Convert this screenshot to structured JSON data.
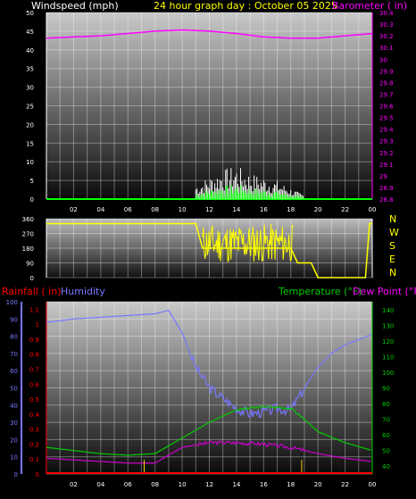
{
  "header": {
    "windspeed_label": "Windspeed (mph)",
    "title": "24 hour graph day : October 05 2025",
    "barometer_label": "Barometer ( in)"
  },
  "legend": {
    "rainfall_label": "Rainfall ( in)",
    "humidity_label": "Humidity",
    "temperature_label": "Temperature (°F)",
    "dewpoint_label": "Dew Point (°F)"
  },
  "direction_labels": [
    "N",
    "W",
    "S",
    "E",
    "N"
  ],
  "colors": {
    "wind": "#ffffff",
    "gust": "#00ff00",
    "barometer": "#ff00ff",
    "direction": "#ffff00",
    "humidity": "#7777ff",
    "temperature": "#00cc00",
    "dewpoint": "#cc00cc",
    "rain": "#ff0000",
    "title": "#ffff00"
  },
  "chart_data": [
    {
      "type": "line",
      "name": "wind-barometer",
      "x_ticks": [
        "02",
        "04",
        "06",
        "08",
        "10",
        "12",
        "14",
        "16",
        "18",
        "20",
        "22",
        "00"
      ],
      "y_left_ticks": [
        "0",
        "5",
        "10",
        "15",
        "20",
        "25",
        "30",
        "35",
        "40",
        "45",
        "50"
      ],
      "y_left_lim": [
        0,
        50
      ],
      "y_right_ticks": [
        "28.8",
        "28.9",
        "29",
        "29.1",
        "29.2",
        "29.3",
        "29.4",
        "29.5",
        "29.6",
        "29.7",
        "29.8",
        "29.9",
        "30",
        "30.1",
        "30.2",
        "30.3",
        "30.4"
      ],
      "y_right_lim": [
        28.8,
        30.4
      ],
      "barometer": {
        "x": [
          0,
          2,
          4,
          6,
          8,
          10,
          12,
          14,
          16,
          18,
          20,
          22,
          24
        ],
        "y": [
          30.18,
          30.19,
          30.2,
          30.22,
          30.24,
          30.25,
          30.24,
          30.22,
          30.19,
          30.18,
          30.18,
          30.2,
          30.22
        ]
      },
      "wind_max": {
        "x": [
          11,
          12,
          13,
          14,
          15,
          16,
          17,
          18,
          19
        ],
        "y": [
          4,
          6,
          8,
          9,
          7,
          6,
          5,
          3,
          1
        ]
      }
    },
    {
      "type": "line",
      "name": "wind-direction",
      "y_ticks": [
        "0",
        "90",
        "180",
        "270",
        "360"
      ],
      "ylim": [
        0,
        360
      ],
      "x": [
        0,
        11,
        11.5,
        18,
        18.5,
        19.5,
        20,
        23.5,
        23.8,
        24
      ],
      "y": [
        330,
        330,
        180,
        180,
        90,
        90,
        0,
        0,
        330,
        330
      ]
    },
    {
      "type": "line",
      "name": "temp-humidity-rain",
      "y_humidity_ticks": [
        "0",
        "10",
        "20",
        "30",
        "40",
        "50",
        "60",
        "70",
        "80",
        "90",
        "100"
      ],
      "y_rain_ticks": [
        "0",
        "0.1",
        "0.2",
        "0.3",
        "0.4",
        "0.5",
        "0.6",
        "0.7",
        "0.8",
        "0.9",
        "1",
        "1.1"
      ],
      "y_temp_ticks": [
        "40",
        "50",
        "60",
        "70",
        "80",
        "90",
        "100",
        "110",
        "120",
        "130",
        "140"
      ],
      "humidity_lim": [
        0,
        100
      ],
      "rain_lim": [
        0,
        1.15
      ],
      "temp_lim": [
        35,
        145
      ],
      "humidity": {
        "x": [
          0,
          2,
          4,
          6,
          8,
          9,
          10,
          11,
          12,
          13,
          14,
          15,
          16,
          17,
          18,
          19,
          20,
          21,
          22,
          23,
          24
        ],
        "y": [
          88,
          90,
          91,
          92,
          93,
          95,
          82,
          62,
          50,
          44,
          38,
          35,
          36,
          38,
          37,
          50,
          62,
          70,
          75,
          78,
          81
        ]
      },
      "temperature": {
        "x": [
          0,
          2,
          4,
          6,
          8,
          10,
          12,
          13,
          14,
          16,
          18,
          19,
          20,
          22,
          24
        ],
        "y": [
          52,
          50,
          48,
          47,
          48,
          58,
          68,
          72,
          76,
          78,
          77,
          70,
          62,
          55,
          50
        ]
      },
      "dewpoint": {
        "x": [
          0,
          2,
          4,
          6,
          8,
          9,
          10,
          12,
          14,
          16,
          18,
          20,
          22,
          24
        ],
        "y": [
          45,
          44,
          43,
          42,
          42,
          47,
          52,
          55,
          55,
          54,
          52,
          48,
          45,
          43
        ]
      },
      "rainfall": {
        "x": [
          0,
          24
        ],
        "y": [
          0,
          0
        ]
      }
    }
  ]
}
